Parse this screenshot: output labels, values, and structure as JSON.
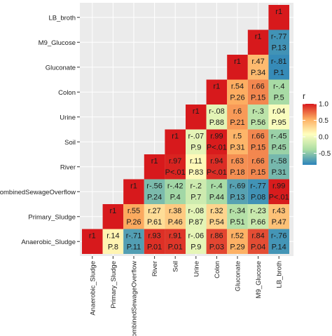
{
  "chart_data": {
    "type": "heatmap",
    "title": "",
    "xlabel": "",
    "ylabel": "",
    "grid": true,
    "legend_position": "right",
    "variables": [
      "Anaerobic_Sludge",
      "Primary_Sludge",
      "CombinedSewageOverflow",
      "River",
      "Soil",
      "Urine",
      "Colon",
      "Gluconate",
      "M9_Glucose",
      "LB_broth"
    ],
    "legend": {
      "title": "r",
      "ticks": [
        1.0,
        0.5,
        0.0,
        -0.5
      ],
      "tick_labels": [
        "1.0",
        "0.5",
        "0.0",
        "-0.5"
      ],
      "range": [
        -0.85,
        1.0
      ],
      "colors": [
        "#2b83ba",
        "#abdda4",
        "#ffffbf",
        "#fdae61",
        "#d7191c"
      ]
    },
    "cells": [
      {
        "row": "Anaerobic_Sludge",
        "col": "Anaerobic_Sludge",
        "r": 1,
        "label_r": "r1",
        "label_p": ""
      },
      {
        "row": "Anaerobic_Sludge",
        "col": "Primary_Sludge",
        "r": 0.14,
        "label_r": "r.14",
        "label_p": "P.8"
      },
      {
        "row": "Anaerobic_Sludge",
        "col": "CombinedSewageOverflow",
        "r": -0.71,
        "label_r": "r-.71",
        "label_p": "P.11"
      },
      {
        "row": "Anaerobic_Sludge",
        "col": "River",
        "r": 0.93,
        "label_r": "r.93",
        "label_p": "P.01"
      },
      {
        "row": "Anaerobic_Sludge",
        "col": "Soil",
        "r": 0.91,
        "label_r": "r.91",
        "label_p": "P.01"
      },
      {
        "row": "Anaerobic_Sludge",
        "col": "Urine",
        "r": -0.06,
        "label_r": "r-.06",
        "label_p": "P.9"
      },
      {
        "row": "Anaerobic_Sludge",
        "col": "Colon",
        "r": 0.86,
        "label_r": "r.86",
        "label_p": "P.03"
      },
      {
        "row": "Anaerobic_Sludge",
        "col": "Gluconate",
        "r": 0.52,
        "label_r": "r.52",
        "label_p": "P.29"
      },
      {
        "row": "Anaerobic_Sludge",
        "col": "M9_Glucose",
        "r": 0.84,
        "label_r": "r.84",
        "label_p": "P.04"
      },
      {
        "row": "Anaerobic_Sludge",
        "col": "LB_broth",
        "r": -0.76,
        "label_r": "r-.76",
        "label_p": "P.14"
      },
      {
        "row": "Primary_Sludge",
        "col": "Primary_Sludge",
        "r": 1,
        "label_r": "r1",
        "label_p": ""
      },
      {
        "row": "Primary_Sludge",
        "col": "CombinedSewageOverflow",
        "r": 0.55,
        "label_r": "r.55",
        "label_p": "P.26"
      },
      {
        "row": "Primary_Sludge",
        "col": "River",
        "r": 0.27,
        "label_r": "r.27",
        "label_p": "P.61"
      },
      {
        "row": "Primary_Sludge",
        "col": "Soil",
        "r": 0.38,
        "label_r": "r.38",
        "label_p": "P.46"
      },
      {
        "row": "Primary_Sludge",
        "col": "Urine",
        "r": -0.08,
        "label_r": "r-.08",
        "label_p": "P.87"
      },
      {
        "row": "Primary_Sludge",
        "col": "Colon",
        "r": 0.32,
        "label_r": "r.32",
        "label_p": "P.54"
      },
      {
        "row": "Primary_Sludge",
        "col": "Gluconate",
        "r": -0.34,
        "label_r": "r-.34",
        "label_p": "P.51"
      },
      {
        "row": "Primary_Sludge",
        "col": "M9_Glucose",
        "r": -0.23,
        "label_r": "r-.23",
        "label_p": "P.66"
      },
      {
        "row": "Primary_Sludge",
        "col": "LB_broth",
        "r": 0.43,
        "label_r": "r.43",
        "label_p": "P.47"
      },
      {
        "row": "CombinedSewageOverflow",
        "col": "CombinedSewageOverflow",
        "r": 1,
        "label_r": "r1",
        "label_p": ""
      },
      {
        "row": "CombinedSewageOverflow",
        "col": "River",
        "r": -0.56,
        "label_r": "r-.56",
        "label_p": "P.24"
      },
      {
        "row": "CombinedSewageOverflow",
        "col": "Soil",
        "r": -0.42,
        "label_r": "r-.42",
        "label_p": "P.4"
      },
      {
        "row": "CombinedSewageOverflow",
        "col": "Urine",
        "r": -0.2,
        "label_r": "r-.2",
        "label_p": "P.7"
      },
      {
        "row": "CombinedSewageOverflow",
        "col": "Colon",
        "r": -0.4,
        "label_r": "r-.4",
        "label_p": "P.44"
      },
      {
        "row": "CombinedSewageOverflow",
        "col": "Gluconate",
        "r": -0.69,
        "label_r": "r-.69",
        "label_p": "P.13"
      },
      {
        "row": "CombinedSewageOverflow",
        "col": "M9_Glucose",
        "r": -0.77,
        "label_r": "r-.77",
        "label_p": "P.08"
      },
      {
        "row": "CombinedSewageOverflow",
        "col": "LB_broth",
        "r": 0.99,
        "label_r": "r.99",
        "label_p": "P<.01"
      },
      {
        "row": "River",
        "col": "River",
        "r": 1,
        "label_r": "r1",
        "label_p": ""
      },
      {
        "row": "River",
        "col": "Soil",
        "r": 0.97,
        "label_r": "r.97",
        "label_p": "P<.01"
      },
      {
        "row": "River",
        "col": "Urine",
        "r": 0.11,
        "label_r": "r.11",
        "label_p": "P.83"
      },
      {
        "row": "River",
        "col": "Colon",
        "r": 0.94,
        "label_r": "r.94",
        "label_p": "P<.01"
      },
      {
        "row": "River",
        "col": "Gluconate",
        "r": 0.63,
        "label_r": "r.63",
        "label_p": "P.18"
      },
      {
        "row": "River",
        "col": "M9_Glucose",
        "r": 0.66,
        "label_r": "r.66",
        "label_p": "P.15"
      },
      {
        "row": "River",
        "col": "LB_broth",
        "r": -0.58,
        "label_r": "r-.58",
        "label_p": "P.31"
      },
      {
        "row": "Soil",
        "col": "Soil",
        "r": 1,
        "label_r": "r1",
        "label_p": ""
      },
      {
        "row": "Soil",
        "col": "Urine",
        "r": -0.07,
        "label_r": "r-.07",
        "label_p": "P.9"
      },
      {
        "row": "Soil",
        "col": "Colon",
        "r": 0.99,
        "label_r": "r.99",
        "label_p": "P<.01"
      },
      {
        "row": "Soil",
        "col": "Gluconate",
        "r": 0.5,
        "label_r": "r.5",
        "label_p": "P.31"
      },
      {
        "row": "Soil",
        "col": "M9_Glucose",
        "r": 0.66,
        "label_r": "r.66",
        "label_p": "P.15"
      },
      {
        "row": "Soil",
        "col": "LB_broth",
        "r": -0.45,
        "label_r": "r-.45",
        "label_p": "P.45"
      },
      {
        "row": "Urine",
        "col": "Urine",
        "r": 1,
        "label_r": "r1",
        "label_p": ""
      },
      {
        "row": "Urine",
        "col": "Colon",
        "r": -0.08,
        "label_r": "r-.08",
        "label_p": "P.88"
      },
      {
        "row": "Urine",
        "col": "Gluconate",
        "r": 0.6,
        "label_r": "r.6",
        "label_p": "P.21"
      },
      {
        "row": "Urine",
        "col": "M9_Glucose",
        "r": -0.3,
        "label_r": "r-.3",
        "label_p": "P.56"
      },
      {
        "row": "Urine",
        "col": "LB_broth",
        "r": 0.04,
        "label_r": "r.04",
        "label_p": "P.95"
      },
      {
        "row": "Colon",
        "col": "Colon",
        "r": 1,
        "label_r": "r1",
        "label_p": ""
      },
      {
        "row": "Colon",
        "col": "Gluconate",
        "r": 0.54,
        "label_r": "r.54",
        "label_p": "P.26"
      },
      {
        "row": "Colon",
        "col": "M9_Glucose",
        "r": 0.66,
        "label_r": "r.66",
        "label_p": "P.15"
      },
      {
        "row": "Colon",
        "col": "LB_broth",
        "r": -0.4,
        "label_r": "r-.4",
        "label_p": "P.5"
      },
      {
        "row": "Gluconate",
        "col": "Gluconate",
        "r": 1,
        "label_r": "r1",
        "label_p": ""
      },
      {
        "row": "Gluconate",
        "col": "M9_Glucose",
        "r": 0.47,
        "label_r": "r.47",
        "label_p": "P.34"
      },
      {
        "row": "Gluconate",
        "col": "LB_broth",
        "r": -0.81,
        "label_r": "r-.81",
        "label_p": "P.1"
      },
      {
        "row": "M9_Glucose",
        "col": "M9_Glucose",
        "r": 1,
        "label_r": "r1",
        "label_p": ""
      },
      {
        "row": "M9_Glucose",
        "col": "LB_broth",
        "r": -0.77,
        "label_r": "r-.77",
        "label_p": "P.13"
      },
      {
        "row": "LB_broth",
        "col": "LB_broth",
        "r": 1,
        "label_r": "r1",
        "label_p": ""
      }
    ]
  }
}
